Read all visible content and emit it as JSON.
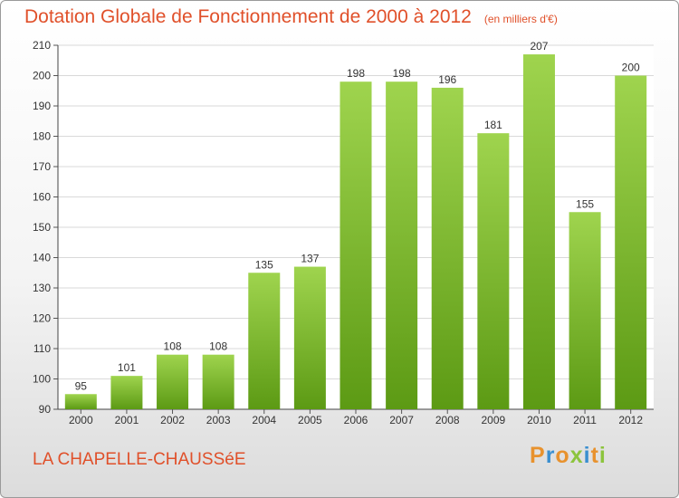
{
  "chart_data": {
    "type": "bar",
    "title": "Dotation Globale de Fonctionnement de 2000 à 2012",
    "subtitle": "(en milliers d'€)",
    "categories": [
      "2000",
      "2001",
      "2002",
      "2003",
      "2004",
      "2005",
      "2006",
      "2007",
      "2008",
      "2009",
      "2010",
      "2011",
      "2012"
    ],
    "values": [
      95,
      101,
      108,
      108,
      135,
      137,
      198,
      198,
      196,
      181,
      207,
      155,
      200
    ],
    "ylim": [
      90,
      210
    ],
    "yticks": [
      90,
      100,
      110,
      120,
      130,
      140,
      150,
      160,
      170,
      180,
      190,
      200,
      210
    ],
    "grid": true,
    "colors": {
      "bar_top": "#9fd44e",
      "bar_bottom": "#5c9a14",
      "text": "#e0502a"
    }
  },
  "footer": {
    "commune": "LA CHAPELLE-CHAUSSéE",
    "logo_letters": [
      "P",
      "r",
      "o",
      "x",
      "i",
      "t",
      "i"
    ],
    "logo_colors": [
      "#e8922e",
      "#3a8fd0",
      "#e8922e",
      "#8cc43c",
      "#3a8fd0",
      "#e8922e",
      "#8cc43c"
    ]
  }
}
